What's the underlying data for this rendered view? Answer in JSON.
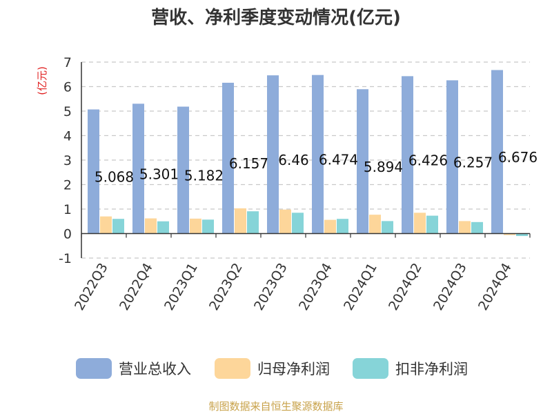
{
  "chart_data": {
    "type": "bar",
    "title": "营收、净利季度变动情况(亿元)",
    "ylabel": "(亿元)",
    "xlabel": "",
    "categories": [
      "2022Q3",
      "2022Q4",
      "2023Q1",
      "2023Q2",
      "2023Q3",
      "2023Q4",
      "2024Q1",
      "2024Q2",
      "2024Q3",
      "2024Q4"
    ],
    "series": [
      {
        "name": "营业总收入",
        "color": "#8eacda",
        "values": [
          5.068,
          5.301,
          5.182,
          6.157,
          6.46,
          6.474,
          5.894,
          6.426,
          6.257,
          6.676
        ]
      },
      {
        "name": "归母净利润",
        "color": "#fdd69a",
        "values": [
          0.7,
          0.62,
          0.61,
          1.03,
          0.98,
          0.56,
          0.77,
          0.85,
          0.51,
          -0.06
        ]
      },
      {
        "name": "扣非净利润",
        "color": "#86d4d8",
        "values": [
          0.6,
          0.5,
          0.57,
          0.91,
          0.85,
          0.6,
          0.51,
          0.73,
          0.47,
          -0.1
        ]
      }
    ],
    "data_labels": [
      "5.068",
      "5.301",
      "5.182",
      "6.157",
      "6.46",
      "6.474",
      "5.894",
      "6.426",
      "6.257",
      "6.676"
    ],
    "yticks": [
      "-1",
      "0",
      "1",
      "2",
      "3",
      "4",
      "5",
      "6",
      "7"
    ],
    "ylim": [
      -1,
      7
    ],
    "grid": true,
    "legend_position": "bottom"
  },
  "footer": {
    "source": "制图数据来自恒生聚源数据库"
  }
}
